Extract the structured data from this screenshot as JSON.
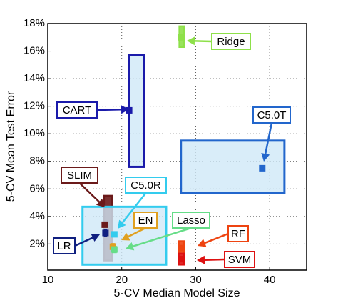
{
  "chart_data": {
    "type": "scatter",
    "x_label": "5-CV Median Model Size",
    "y_label": "5-CV Mean Test Error",
    "xlim": [
      10,
      45
    ],
    "ylim": [
      0.1,
      18
    ],
    "xticks": [
      10,
      20,
      30,
      40
    ],
    "yticks": [
      {
        "value": 2,
        "label": "2%"
      },
      {
        "value": 4,
        "label": "4%"
      },
      {
        "value": 6,
        "label": "6%"
      },
      {
        "value": 8,
        "label": "8%"
      },
      {
        "value": 10,
        "label": "10%"
      },
      {
        "value": 12,
        "label": "12%"
      },
      {
        "value": 14,
        "label": "14%"
      },
      {
        "value": 16,
        "label": "16%"
      },
      {
        "value": 18,
        "label": "18%"
      }
    ],
    "grid": true,
    "series": [
      {
        "name": "Ridge",
        "color": "#8ee04a",
        "x": 28,
        "y": 17,
        "xrange": [
          27.8,
          28.4
        ],
        "yrange": [
          16.3,
          17.8
        ]
      },
      {
        "name": "CART",
        "color": "#1a1aaa",
        "x": 21,
        "y": 11.7,
        "xrange": [
          21,
          23
        ],
        "yrange": [
          7.6,
          15.7
        ],
        "box_fill": "#cfe8f8"
      },
      {
        "name": "C5.0T",
        "color": "#2266cc",
        "x": 39,
        "y": 7.5,
        "xrange": [
          28,
          42
        ],
        "yrange": [
          5.7,
          9.5
        ],
        "box_fill": "#cfe8f8"
      },
      {
        "name": "SLIM",
        "color": "#6b1a1a",
        "x": 17.7,
        "y": 3.4,
        "xrange": [
          17.6,
          18.7
        ],
        "yrange": [
          0.8,
          5.5
        ]
      },
      {
        "name": "C5.0R",
        "color": "#33ccee",
        "x": 19,
        "y": 2.7,
        "xrange": [
          14.7,
          26
        ],
        "yrange": [
          0.5,
          4.7
        ],
        "box_fill": "#cfe8f8"
      },
      {
        "name": "EN",
        "color": "#e0a020",
        "x": 18.8,
        "y": 1.8,
        "xrange": [
          18.6,
          19
        ],
        "yrange": [
          1.6,
          2
        ]
      },
      {
        "name": "Lasso",
        "color": "#66dd88",
        "x": 19,
        "y": 1.6,
        "xrange": [
          18.8,
          19.2
        ],
        "yrange": [
          1.4,
          1.8
        ]
      },
      {
        "name": "LR",
        "color": "#102080",
        "x": 17.8,
        "y": 2.8,
        "xrange": [
          17.7,
          17.9
        ],
        "yrange": [
          2.6,
          3
        ]
      },
      {
        "name": "RF",
        "color": "#ee4411",
        "x": 28,
        "y": 1.7,
        "xrange": [
          27.7,
          28.4
        ],
        "yrange": [
          1.3,
          2.2
        ]
      },
      {
        "name": "SVM",
        "color": "#dd1111",
        "x": 28,
        "y": 0.9,
        "xrange": [
          27.7,
          28.4
        ],
        "yrange": [
          0.5,
          1.3
        ]
      }
    ]
  }
}
